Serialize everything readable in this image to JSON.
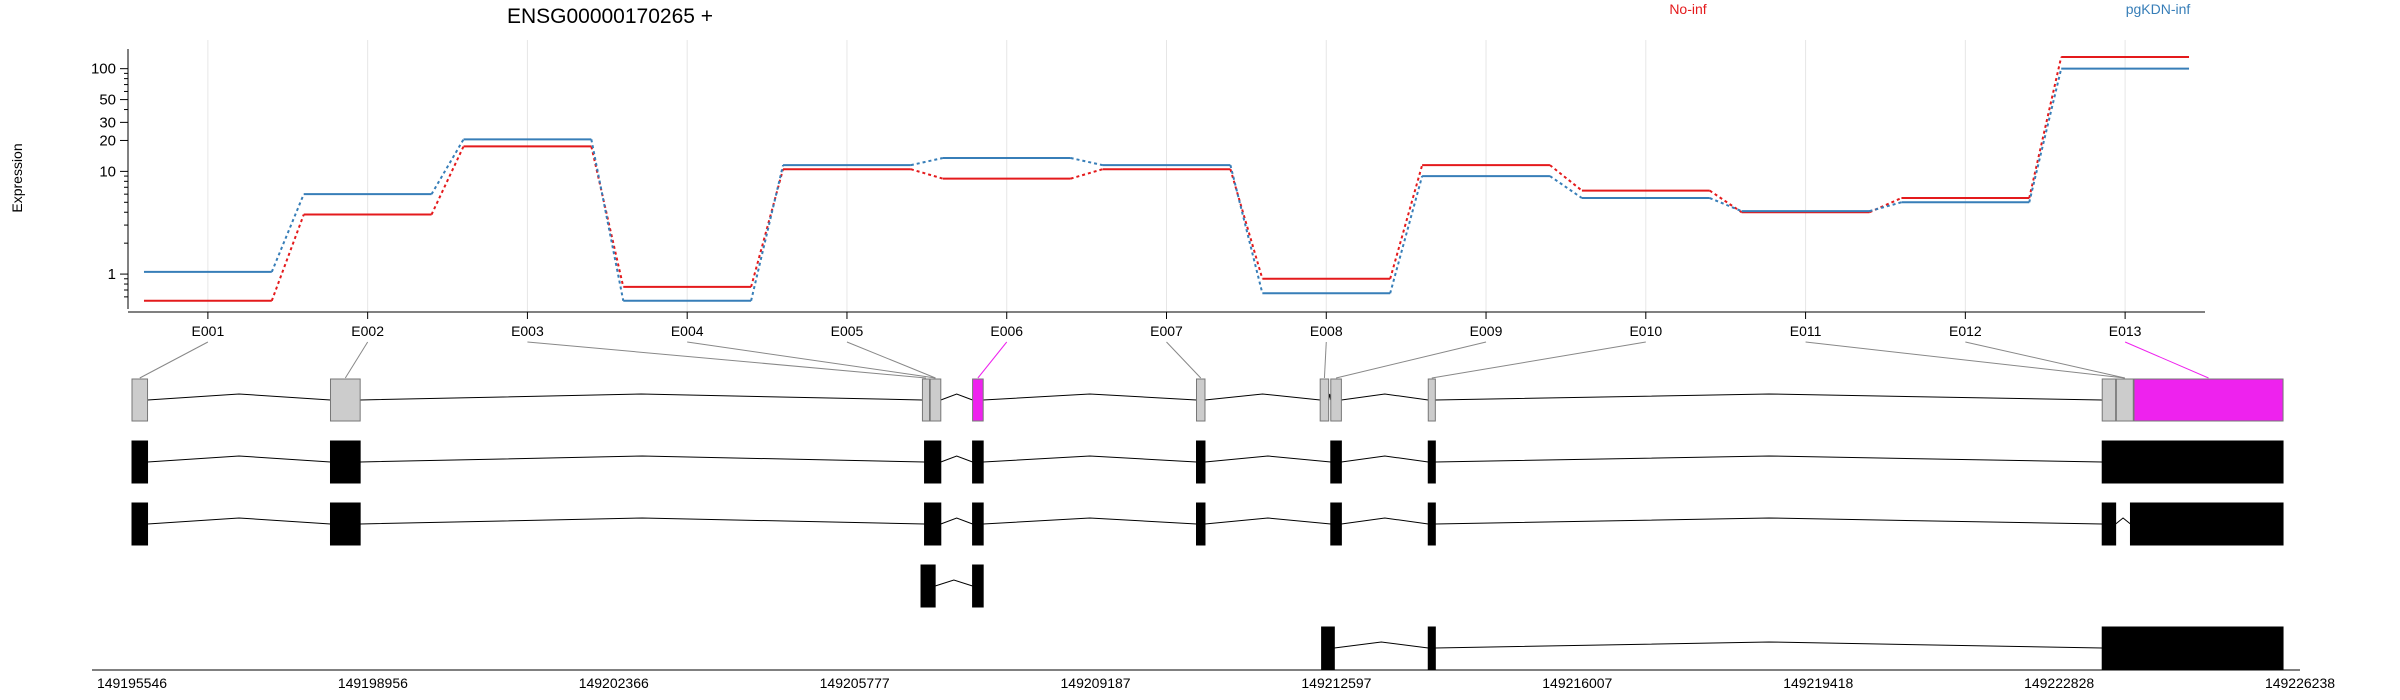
{
  "chart_data": {
    "type": "line",
    "title": "ENSG00000170265 +",
    "ylabel": "Expression",
    "yscale": "log",
    "ylim": [
      0.5,
      170
    ],
    "grid": true,
    "yticks": [
      {
        "value": 1,
        "label": "1"
      },
      {
        "value": 10,
        "label": "10"
      },
      {
        "value": 20,
        "label": "20"
      },
      {
        "value": 30,
        "label": "30"
      },
      {
        "value": 50,
        "label": "50"
      },
      {
        "value": 100,
        "label": "100"
      }
    ],
    "categories": [
      "E001",
      "E002",
      "E003",
      "E004",
      "E005",
      "E006",
      "E007",
      "E008",
      "E009",
      "E010",
      "E011",
      "E012",
      "E013"
    ],
    "series": [
      {
        "name": "No-inf",
        "color": "#e41a1c",
        "values": [
          0.55,
          3.8,
          17.5,
          0.75,
          10.5,
          8.5,
          10.5,
          0.9,
          11.5,
          6.5,
          4.0,
          5.5,
          130
        ]
      },
      {
        "name": "pgKDN-inf",
        "color": "#377eb8",
        "values": [
          1.05,
          6.0,
          20.5,
          0.55,
          11.5,
          13.5,
          11.5,
          0.65,
          9.0,
          5.5,
          4.1,
          5.0,
          100
        ]
      }
    ],
    "highlight_color": "#ee22ee",
    "highlight_exon": "E006",
    "genomic_axis_ticks": [
      "149195546",
      "149198956",
      "149202366",
      "149205777",
      "149209187",
      "149212597",
      "149216007",
      "149219418",
      "149222828",
      "149226238"
    ],
    "transcripts": 5
  }
}
